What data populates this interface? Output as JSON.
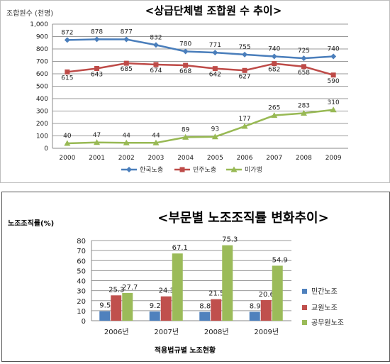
{
  "chart_data": [
    {
      "type": "line",
      "title": "<상급단체별 조합원 수 추이>",
      "ylabel": "조합원수 (천명)",
      "xlabel": "",
      "x": [
        "2000",
        "2001",
        "2002",
        "2003",
        "2004",
        "2005",
        "2006",
        "2007",
        "2008",
        "2009"
      ],
      "ylim": [
        0,
        1000
      ],
      "yticks": [
        "0",
        "100",
        "200",
        "300",
        "400",
        "500",
        "600",
        "700",
        "800",
        "900",
        "1,000"
      ],
      "grid": true,
      "legend_position": "bottom",
      "series": [
        {
          "name": "한국노총",
          "color": "#4a7ebb",
          "marker": "diamond",
          "values": [
            872,
            878,
            877,
            832,
            780,
            771,
            755,
            740,
            725,
            740
          ]
        },
        {
          "name": "민주노총",
          "color": "#be4b48",
          "marker": "square",
          "values": [
            615,
            643,
            685,
            674,
            668,
            642,
            627,
            682,
            658,
            590
          ]
        },
        {
          "name": "미가맹",
          "color": "#98b954",
          "marker": "triangle",
          "values": [
            40,
            47,
            44,
            44,
            89,
            93,
            177,
            265,
            283,
            310
          ]
        }
      ]
    },
    {
      "type": "bar",
      "title": "<부문별 노조조직률 변화추이>",
      "ylabel": "노조조직률(%)",
      "xlabel": "적용법규별 노조현황",
      "categories": [
        "2006년",
        "2007년",
        "2008년",
        "2009년"
      ],
      "ylim": [
        0,
        80
      ],
      "yticks": [
        "0",
        "10",
        "20",
        "30",
        "40",
        "50",
        "60",
        "70",
        "80"
      ],
      "grid": true,
      "legend_position": "right",
      "series": [
        {
          "name": "민간노조",
          "color": "#4f81bd",
          "values": [
            9.5,
            9.2,
            8.8,
            8.9
          ]
        },
        {
          "name": "교원노조",
          "color": "#c0504d",
          "values": [
            25.3,
            24.3,
            21.5,
            20.6
          ]
        },
        {
          "name": "공무원노조",
          "color": "#9bbb59",
          "values": [
            27.7,
            67.1,
            75.3,
            54.9
          ]
        }
      ]
    }
  ]
}
